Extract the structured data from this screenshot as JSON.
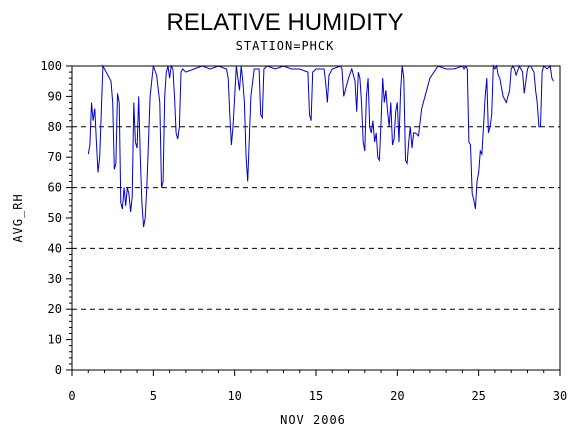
{
  "chart_data": {
    "type": "line",
    "title": "RELATIVE HUMIDITY",
    "subtitle": "STATION=PHCK",
    "xlabel": "NOV 2006",
    "ylabel": "AVG_RH",
    "xlim": [
      0,
      30
    ],
    "ylim": [
      0,
      100
    ],
    "x_ticks": [
      0,
      5,
      10,
      15,
      20,
      25,
      30
    ],
    "y_ticks": [
      0,
      10,
      20,
      30,
      40,
      50,
      60,
      70,
      80,
      90,
      100
    ],
    "reference_lines": [
      0,
      20,
      40,
      60,
      80,
      100
    ],
    "grid": false,
    "colors": {
      "series": "#0000cc",
      "axis": "#000000",
      "reference": "#000000"
    },
    "series": [
      {
        "x": [
          1.0,
          1.1,
          1.2,
          1.3,
          1.4,
          1.5,
          1.6,
          1.7,
          1.8,
          1.9,
          2.0,
          2.2,
          2.4,
          2.5,
          2.6,
          2.7,
          2.8,
          2.9,
          3.0,
          3.1,
          3.2,
          3.3,
          3.4,
          3.5,
          3.6,
          3.7,
          3.8,
          3.9,
          4.0,
          4.1,
          4.2,
          4.3,
          4.4,
          4.5,
          4.6,
          4.7,
          4.8,
          4.9,
          5.0,
          5.2,
          5.4,
          5.5,
          5.6,
          5.7,
          5.8,
          5.9,
          6.0,
          6.1,
          6.2,
          6.3,
          6.4,
          6.5,
          6.6,
          6.7,
          6.8,
          7.0,
          7.5,
          8.0,
          8.5,
          9.0,
          9.5,
          9.6,
          9.7,
          9.8,
          9.9,
          10.0,
          10.1,
          10.2,
          10.3,
          10.4,
          10.5,
          10.6,
          10.7,
          10.8,
          11.0,
          11.2,
          11.5,
          11.6,
          11.7,
          11.8,
          12.0,
          12.5,
          13.0,
          13.5,
          14.0,
          14.5,
          14.6,
          14.7,
          14.8,
          15.0,
          15.5,
          15.6,
          15.7,
          15.8,
          16.0,
          16.5,
          16.6,
          16.7,
          16.8,
          17.0,
          17.2,
          17.4,
          17.5,
          17.6,
          17.7,
          17.8,
          17.9,
          18.0,
          18.1,
          18.2,
          18.3,
          18.4,
          18.5,
          18.6,
          18.7,
          18.8,
          18.9,
          19.0,
          19.1,
          19.2,
          19.3,
          19.4,
          19.5,
          19.6,
          19.7,
          19.8,
          19.9,
          20.0,
          20.1,
          20.2,
          20.3,
          20.4,
          20.5,
          20.6,
          20.7,
          20.8,
          20.9,
          21.0,
          21.1,
          21.3,
          21.5,
          22.0,
          22.5,
          23.0,
          23.5,
          24.0,
          24.1,
          24.2,
          24.3,
          24.4,
          24.5,
          24.6,
          24.7,
          24.8,
          24.9,
          25.0,
          25.1,
          25.2,
          25.3,
          25.4,
          25.5,
          25.6,
          25.7,
          25.8,
          25.9,
          26.0,
          26.1,
          26.2,
          26.3,
          26.5,
          26.7,
          26.9,
          27.0,
          27.1,
          27.2,
          27.3,
          27.5,
          27.6,
          27.7,
          27.8,
          28.0,
          28.1,
          28.2,
          28.3,
          28.4,
          28.5,
          28.6,
          28.7,
          28.8,
          28.9,
          29.0,
          29.2,
          29.4,
          29.5,
          29.6
        ],
        "values": [
          71,
          74,
          88,
          82,
          86,
          75,
          65,
          70,
          85,
          100,
          99,
          97,
          95,
          88,
          66,
          68,
          91,
          88,
          55,
          53,
          60,
          54,
          60,
          58,
          52,
          57,
          88,
          75,
          73,
          90,
          70,
          55,
          47,
          50,
          60,
          75,
          90,
          95,
          100,
          97,
          88,
          60,
          62,
          90,
          98,
          100,
          96,
          100,
          99,
          90,
          78,
          76,
          80,
          98,
          99,
          98,
          99,
          100,
          99,
          100,
          99,
          96,
          84,
          74,
          80,
          90,
          100,
          96,
          92,
          100,
          95,
          88,
          70,
          62,
          90,
          99,
          99,
          84,
          83,
          99,
          100,
          99,
          100,
          99,
          99,
          98,
          84,
          82,
          98,
          99,
          99,
          94,
          88,
          97,
          99,
          100,
          99,
          90,
          92,
          96,
          99,
          95,
          85,
          98,
          96,
          88,
          75,
          72,
          90,
          96,
          80,
          78,
          82,
          75,
          78,
          70,
          69,
          82,
          96,
          88,
          92,
          85,
          80,
          88,
          74,
          76,
          85,
          88,
          75,
          92,
          100,
          96,
          69,
          68,
          75,
          80,
          73,
          78,
          78,
          77,
          86,
          96,
          100,
          99,
          99,
          100,
          99,
          100,
          99,
          75,
          74,
          58,
          56,
          53,
          62,
          65,
          72,
          71,
          80,
          90,
          96,
          78,
          80,
          84,
          100,
          99,
          100,
          97,
          96,
          90,
          88,
          92,
          99,
          100,
          99,
          97,
          100,
          99,
          98,
          91,
          99,
          100,
          100,
          99,
          98,
          92,
          88,
          80,
          80,
          98,
          100,
          99,
          100,
          96,
          95
        ]
      }
    ]
  }
}
